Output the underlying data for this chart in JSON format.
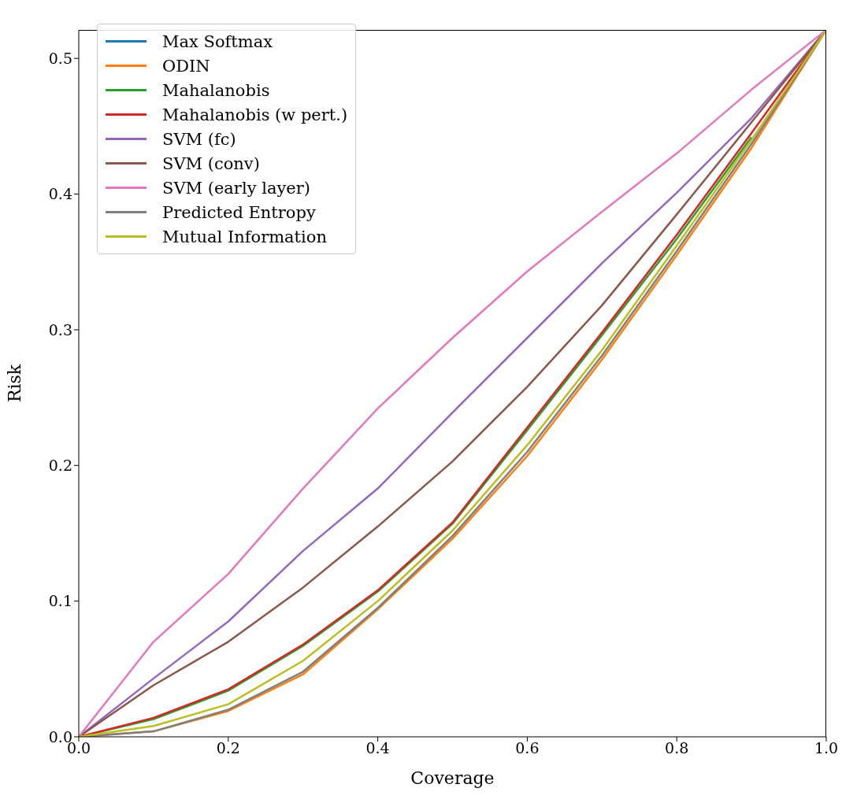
{
  "chart_data": {
    "type": "line",
    "xlabel": "Coverage",
    "ylabel": "Risk",
    "legend": "top left",
    "grid": false,
    "marker": "none",
    "line_style": "solid",
    "x": [
      0,
      0.1,
      0.2,
      0.3,
      0.4,
      0.5,
      0.6,
      0.7,
      0.8,
      0.9,
      1.0
    ],
    "xlim": [
      0,
      1
    ],
    "ylim": [
      0,
      0.521
    ],
    "xticks": [
      {
        "value": 0,
        "label": "0.0"
      },
      {
        "value": 0.2,
        "label": "0.2"
      },
      {
        "value": 0.4,
        "label": "0.4"
      },
      {
        "value": 0.6,
        "label": "0.6"
      },
      {
        "value": 0.8,
        "label": "0.8"
      },
      {
        "value": 1,
        "label": "1.0"
      }
    ],
    "yticks": [
      {
        "value": 0,
        "label": "0.0"
      },
      {
        "value": 0.1,
        "label": "0.1"
      },
      {
        "value": 0.2,
        "label": "0.2"
      },
      {
        "value": 0.3,
        "label": "0.3"
      },
      {
        "value": 0.4,
        "label": "0.4"
      },
      {
        "value": 0.5,
        "label": "0.5"
      }
    ],
    "series": [
      {
        "name": "Max Softmax",
        "color": "#1f77b4",
        "values": [
          null,
          null,
          null,
          null,
          null,
          null,
          null,
          null,
          null,
          null,
          null
        ]
      },
      {
        "name": "ODIN",
        "color": "#ff7f0e",
        "values": [
          0,
          0.004,
          0.019,
          0.046,
          0.094,
          0.146,
          0.207,
          0.278,
          0.355,
          0.434,
          0.521
        ]
      },
      {
        "name": "Mahalanobis",
        "color": "#2ca02c",
        "values": [
          0,
          0.013,
          0.034,
          0.067,
          0.107,
          0.157,
          0.226,
          0.296,
          0.367,
          0.442,
          null
        ]
      },
      {
        "name": "Mahalanobis (w pert.)",
        "color": "#d62728",
        "values": [
          0,
          0.014,
          0.035,
          0.068,
          0.108,
          0.158,
          0.228,
          0.298,
          0.37,
          0.445,
          0.521
        ]
      },
      {
        "name": "SVM (fc)",
        "color": "#9467bd",
        "values": [
          0,
          0.043,
          0.085,
          0.137,
          0.183,
          0.239,
          0.294,
          0.349,
          0.401,
          0.456,
          0.521
        ]
      },
      {
        "name": "SVM (conv)",
        "color": "#8c564b",
        "values": [
          0,
          0.038,
          0.07,
          0.11,
          0.155,
          0.203,
          0.258,
          0.318,
          0.385,
          0.453,
          0.521
        ]
      },
      {
        "name": "SVM (early layer)",
        "color": "#e377c2",
        "values": [
          0,
          0.07,
          0.12,
          0.183,
          0.242,
          0.294,
          0.343,
          0.387,
          0.43,
          0.477,
          0.521
        ]
      },
      {
        "name": "Predicted Entropy",
        "color": "#7f7f7f",
        "values": [
          0,
          0.004,
          0.02,
          0.048,
          0.095,
          0.148,
          0.21,
          0.281,
          0.358,
          0.437,
          0.521
        ]
      },
      {
        "name": "Mutual Information",
        "color": "#bcbd22",
        "values": [
          0,
          0.008,
          0.024,
          0.056,
          0.1,
          0.152,
          0.215,
          0.285,
          0.362,
          0.44,
          0.521
        ]
      }
    ]
  }
}
